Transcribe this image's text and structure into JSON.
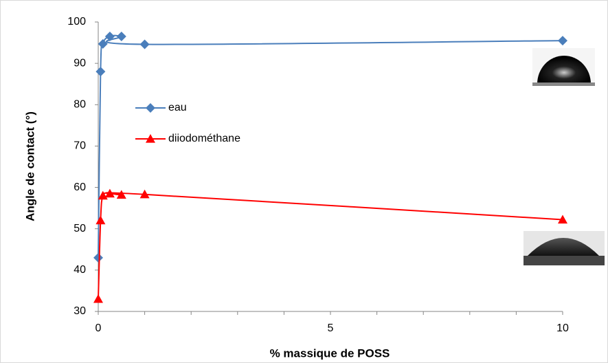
{
  "chart_data": {
    "type": "line",
    "x_label": "% massique de POSS",
    "y_label": "Angle de contact (°)",
    "xlim": [
      0,
      10
    ],
    "xticks": [
      0,
      5,
      10
    ],
    "ylim": [
      30,
      100
    ],
    "yticks": [
      30,
      40,
      50,
      60,
      70,
      80,
      90,
      100
    ],
    "series": [
      {
        "name": "eau",
        "color": "#4a7ebb",
        "marker": "diamond",
        "x": [
          0,
          0.05,
          0.1,
          0.25,
          0.5,
          1,
          10
        ],
        "values": [
          43,
          88,
          94.7,
          96.5,
          96.5,
          94.6,
          95.5
        ]
      },
      {
        "name": "diiodométhane",
        "color": "#ff0000",
        "marker": "triangle",
        "x": [
          0,
          0.05,
          0.1,
          0.25,
          0.5,
          1,
          10
        ],
        "values": [
          33,
          52,
          58,
          58.5,
          58.2,
          58.3,
          52.2
        ]
      }
    ]
  }
}
